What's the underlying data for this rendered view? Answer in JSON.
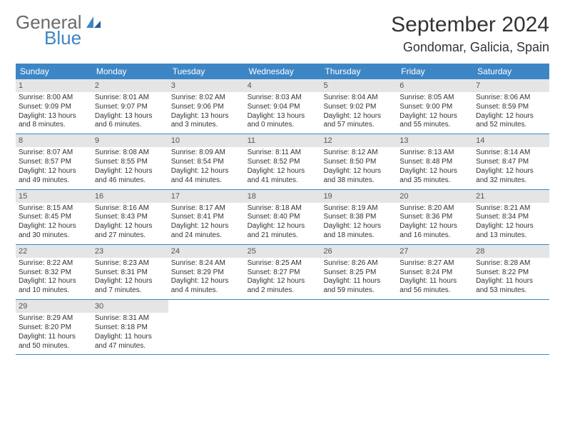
{
  "logo": {
    "word1": "General",
    "word2": "Blue"
  },
  "title": "September 2024",
  "location": "Gondomar, Galicia, Spain",
  "colors": {
    "header_bg": "#3d86c6",
    "header_text": "#ffffff",
    "daynum_bg": "#e5e5e5",
    "rule": "#3d86c6",
    "body_text": "#333333",
    "logo_gray": "#6a6a6a",
    "logo_blue": "#3d86c6",
    "page_bg": "#ffffff"
  },
  "typography": {
    "title_fontsize": 30,
    "location_fontsize": 18,
    "weekday_fontsize": 12,
    "daynum_fontsize": 11,
    "body_fontsize": 10,
    "logo_fontsize": 26
  },
  "weekdays": [
    "Sunday",
    "Monday",
    "Tuesday",
    "Wednesday",
    "Thursday",
    "Friday",
    "Saturday"
  ],
  "days": [
    {
      "n": 1,
      "sunrise": "8:00 AM",
      "sunset": "9:09 PM",
      "daylight": "13 hours and 8 minutes."
    },
    {
      "n": 2,
      "sunrise": "8:01 AM",
      "sunset": "9:07 PM",
      "daylight": "13 hours and 6 minutes."
    },
    {
      "n": 3,
      "sunrise": "8:02 AM",
      "sunset": "9:06 PM",
      "daylight": "13 hours and 3 minutes."
    },
    {
      "n": 4,
      "sunrise": "8:03 AM",
      "sunset": "9:04 PM",
      "daylight": "13 hours and 0 minutes."
    },
    {
      "n": 5,
      "sunrise": "8:04 AM",
      "sunset": "9:02 PM",
      "daylight": "12 hours and 57 minutes."
    },
    {
      "n": 6,
      "sunrise": "8:05 AM",
      "sunset": "9:00 PM",
      "daylight": "12 hours and 55 minutes."
    },
    {
      "n": 7,
      "sunrise": "8:06 AM",
      "sunset": "8:59 PM",
      "daylight": "12 hours and 52 minutes."
    },
    {
      "n": 8,
      "sunrise": "8:07 AM",
      "sunset": "8:57 PM",
      "daylight": "12 hours and 49 minutes."
    },
    {
      "n": 9,
      "sunrise": "8:08 AM",
      "sunset": "8:55 PM",
      "daylight": "12 hours and 46 minutes."
    },
    {
      "n": 10,
      "sunrise": "8:09 AM",
      "sunset": "8:54 PM",
      "daylight": "12 hours and 44 minutes."
    },
    {
      "n": 11,
      "sunrise": "8:11 AM",
      "sunset": "8:52 PM",
      "daylight": "12 hours and 41 minutes."
    },
    {
      "n": 12,
      "sunrise": "8:12 AM",
      "sunset": "8:50 PM",
      "daylight": "12 hours and 38 minutes."
    },
    {
      "n": 13,
      "sunrise": "8:13 AM",
      "sunset": "8:48 PM",
      "daylight": "12 hours and 35 minutes."
    },
    {
      "n": 14,
      "sunrise": "8:14 AM",
      "sunset": "8:47 PM",
      "daylight": "12 hours and 32 minutes."
    },
    {
      "n": 15,
      "sunrise": "8:15 AM",
      "sunset": "8:45 PM",
      "daylight": "12 hours and 30 minutes."
    },
    {
      "n": 16,
      "sunrise": "8:16 AM",
      "sunset": "8:43 PM",
      "daylight": "12 hours and 27 minutes."
    },
    {
      "n": 17,
      "sunrise": "8:17 AM",
      "sunset": "8:41 PM",
      "daylight": "12 hours and 24 minutes."
    },
    {
      "n": 18,
      "sunrise": "8:18 AM",
      "sunset": "8:40 PM",
      "daylight": "12 hours and 21 minutes."
    },
    {
      "n": 19,
      "sunrise": "8:19 AM",
      "sunset": "8:38 PM",
      "daylight": "12 hours and 18 minutes."
    },
    {
      "n": 20,
      "sunrise": "8:20 AM",
      "sunset": "8:36 PM",
      "daylight": "12 hours and 16 minutes."
    },
    {
      "n": 21,
      "sunrise": "8:21 AM",
      "sunset": "8:34 PM",
      "daylight": "12 hours and 13 minutes."
    },
    {
      "n": 22,
      "sunrise": "8:22 AM",
      "sunset": "8:32 PM",
      "daylight": "12 hours and 10 minutes."
    },
    {
      "n": 23,
      "sunrise": "8:23 AM",
      "sunset": "8:31 PM",
      "daylight": "12 hours and 7 minutes."
    },
    {
      "n": 24,
      "sunrise": "8:24 AM",
      "sunset": "8:29 PM",
      "daylight": "12 hours and 4 minutes."
    },
    {
      "n": 25,
      "sunrise": "8:25 AM",
      "sunset": "8:27 PM",
      "daylight": "12 hours and 2 minutes."
    },
    {
      "n": 26,
      "sunrise": "8:26 AM",
      "sunset": "8:25 PM",
      "daylight": "11 hours and 59 minutes."
    },
    {
      "n": 27,
      "sunrise": "8:27 AM",
      "sunset": "8:24 PM",
      "daylight": "11 hours and 56 minutes."
    },
    {
      "n": 28,
      "sunrise": "8:28 AM",
      "sunset": "8:22 PM",
      "daylight": "11 hours and 53 minutes."
    },
    {
      "n": 29,
      "sunrise": "8:29 AM",
      "sunset": "8:20 PM",
      "daylight": "11 hours and 50 minutes."
    },
    {
      "n": 30,
      "sunrise": "8:31 AM",
      "sunset": "8:18 PM",
      "daylight": "11 hours and 47 minutes."
    }
  ],
  "labels": {
    "sunrise": "Sunrise:",
    "sunset": "Sunset:",
    "daylight": "Daylight:"
  },
  "layout": {
    "first_weekday_index": 0,
    "total_cells": 35
  }
}
